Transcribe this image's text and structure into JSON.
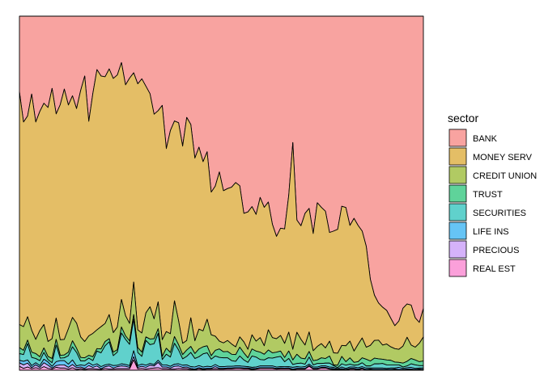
{
  "chart_data": {
    "type": "area",
    "stacked": "fill",
    "x_axis": "hidden",
    "y_axis": "hidden",
    "ylim": [
      0,
      1
    ],
    "grid": false,
    "legend": {
      "title": "sector",
      "placement": "right"
    },
    "stack_order_top_to_bottom": [
      "BANK",
      "MONEY SERV",
      "CREDIT UNION",
      "TRUST",
      "SECURITIES",
      "LIFE INS",
      "PRECIOUS",
      "REAL EST"
    ],
    "x": [
      1,
      2,
      3,
      4,
      5,
      6,
      7,
      8,
      9,
      10,
      11,
      12,
      13,
      14,
      15,
      16,
      17,
      18,
      19,
      20,
      21,
      22,
      23,
      24,
      25,
      26,
      27,
      28,
      29,
      30,
      31,
      32,
      33,
      34,
      35,
      36,
      37,
      38,
      39,
      40,
      41,
      42,
      43,
      44,
      45,
      46,
      47,
      48,
      49,
      50,
      51,
      52,
      53,
      54,
      55,
      56,
      57,
      58,
      59,
      60,
      61,
      62,
      63,
      64,
      65,
      66,
      67,
      68,
      69,
      70,
      71,
      72,
      73,
      74,
      75,
      76,
      77,
      78,
      79,
      80,
      81,
      82,
      83,
      84,
      85,
      86,
      87,
      88,
      89,
      90,
      91,
      92,
      93,
      94,
      95,
      96,
      97,
      98,
      99,
      100
    ],
    "series": [
      {
        "name": "BANK",
        "color": "#F8A3A0",
        "values": [
          0.214,
          0.299,
          0.282,
          0.22,
          0.299,
          0.269,
          0.246,
          0.258,
          0.204,
          0.276,
          0.25,
          0.206,
          0.251,
          0.225,
          0.261,
          0.21,
          0.169,
          0.297,
          0.218,
          0.151,
          0.169,
          0.171,
          0.149,
          0.176,
          0.166,
          0.131,
          0.194,
          0.175,
          0.16,
          0.191,
          0.177,
          0.198,
          0.219,
          0.277,
          0.267,
          0.252,
          0.374,
          0.323,
          0.296,
          0.301,
          0.367,
          0.286,
          0.306,
          0.401,
          0.37,
          0.411,
          0.383,
          0.497,
          0.48,
          0.44,
          0.493,
          0.487,
          0.483,
          0.47,
          0.479,
          0.557,
          0.553,
          0.538,
          0.56,
          0.512,
          0.54,
          0.525,
          0.588,
          0.622,
          0.599,
          0.604,
          0.504,
          0.357,
          0.576,
          0.592,
          0.557,
          0.543,
          0.614,
          0.527,
          0.54,
          0.551,
          0.611,
          0.607,
          0.602,
          0.537,
          0.541,
          0.591,
          0.571,
          0.591,
          0.607,
          0.65,
          0.743,
          0.788,
          0.81,
          0.822,
          0.831,
          0.853,
          0.876,
          0.861,
          0.825,
          0.813,
          0.816,
          0.852,
          0.865,
          0.826
        ]
      },
      {
        "name": "MONEY SERV",
        "color": "#E4BE66",
        "values": [
          0.657,
          0.578,
          0.567,
          0.667,
          0.614,
          0.619,
          0.625,
          0.661,
          0.707,
          0.577,
          0.664,
          0.707,
          0.632,
          0.626,
          0.606,
          0.696,
          0.75,
          0.606,
          0.678,
          0.735,
          0.708,
          0.697,
          0.694,
          0.718,
          0.712,
          0.669,
          0.652,
          0.693,
          0.591,
          0.695,
          0.718,
          0.64,
          0.602,
          0.578,
          0.54,
          0.662,
          0.517,
          0.574,
          0.508,
          0.559,
          0.557,
          0.63,
          0.546,
          0.516,
          0.514,
          0.478,
          0.473,
          0.403,
          0.424,
          0.478,
          0.43,
          0.429,
          0.443,
          0.464,
          0.427,
          0.363,
          0.388,
          0.362,
          0.358,
          0.396,
          0.391,
          0.361,
          0.32,
          0.289,
          0.303,
          0.325,
          0.384,
          0.584,
          0.317,
          0.321,
          0.372,
          0.349,
          0.331,
          0.406,
          0.385,
          0.386,
          0.307,
          0.344,
          0.35,
          0.393,
          0.391,
          0.327,
          0.375,
          0.336,
          0.302,
          0.285,
          0.187,
          0.128,
          0.105,
          0.107,
          0.095,
          0.081,
          0.065,
          0.08,
          0.107,
          0.094,
          0.113,
          0.083,
          0.059,
          0.08
        ]
      },
      {
        "name": "CREDIT UNION",
        "color": "#B1CA63",
        "values": [
          0.065,
          0.067,
          0.066,
          0.062,
          0.04,
          0.074,
          0.066,
          0.042,
          0.056,
          0.06,
          0.044,
          0.044,
          0.066,
          0.066,
          0.071,
          0.058,
          0.046,
          0.055,
          0.066,
          0.053,
          0.063,
          0.051,
          0.068,
          0.055,
          0.064,
          0.078,
          0.057,
          0.049,
          0.092,
          0.05,
          0.054,
          0.068,
          0.091,
          0.056,
          0.076,
          0.047,
          0.047,
          0.053,
          0.101,
          0.068,
          0.032,
          0.027,
          0.081,
          0.036,
          0.056,
          0.045,
          0.075,
          0.059,
          0.04,
          0.022,
          0.025,
          0.031,
          0.029,
          0.022,
          0.029,
          0.031,
          0.024,
          0.04,
          0.028,
          0.041,
          0.024,
          0.057,
          0.043,
          0.038,
          0.044,
          0.04,
          0.053,
          0.03,
          0.062,
          0.053,
          0.039,
          0.055,
          0.028,
          0.038,
          0.04,
          0.03,
          0.042,
          0.034,
          0.034,
          0.031,
          0.045,
          0.047,
          0.032,
          0.049,
          0.056,
          0.034,
          0.044,
          0.05,
          0.053,
          0.04,
          0.045,
          0.038,
          0.038,
          0.037,
          0.048,
          0.068,
          0.038,
          0.036,
          0.052,
          0.068
        ]
      },
      {
        "name": "TRUST",
        "color": "#5FD39A",
        "values": [
          0.017,
          0.012,
          0.01,
          0.015,
          0.014,
          0.011,
          0.013,
          0.009,
          0.012,
          0.016,
          0.008,
          0.008,
          0.01,
          0.017,
          0.012,
          0.01,
          0.009,
          0.008,
          0.011,
          0.007,
          0.011,
          0.012,
          0.009,
          0.01,
          0.007,
          0.017,
          0.01,
          0.01,
          0.013,
          0.014,
          0.012,
          0.01,
          0.016,
          0.014,
          0.013,
          0.009,
          0.017,
          0.013,
          0.019,
          0.015,
          0.012,
          0.018,
          0.017,
          0.014,
          0.022,
          0.02,
          0.02,
          0.01,
          0.016,
          0.024,
          0.017,
          0.018,
          0.018,
          0.019,
          0.025,
          0.02,
          0.013,
          0.02,
          0.017,
          0.021,
          0.016,
          0.022,
          0.015,
          0.014,
          0.015,
          0.012,
          0.021,
          0.013,
          0.026,
          0.014,
          0.015,
          0.016,
          0.012,
          0.01,
          0.016,
          0.013,
          0.02,
          0.002,
          0.007,
          0.021,
          0.01,
          0.018,
          0.008,
          0.009,
          0.014,
          0.019,
          0.014,
          0.016,
          0.014,
          0.012,
          0.014,
          0.013,
          0.008,
          0.007,
          0.011,
          0.013,
          0.015,
          0.014,
          0.011,
          0.013
        ]
      },
      {
        "name": "SECURITIES",
        "color": "#60D1CC",
        "values": [
          0.019,
          0.019,
          0.046,
          0.023,
          0.012,
          0.014,
          0.019,
          0.007,
          0.01,
          0.047,
          0.007,
          0.008,
          0.024,
          0.037,
          0.038,
          0.011,
          0.013,
          0.013,
          0.013,
          0.036,
          0.039,
          0.054,
          0.063,
          0.028,
          0.037,
          0.087,
          0.071,
          0.06,
          0.089,
          0.037,
          0.022,
          0.07,
          0.053,
          0.059,
          0.076,
          0.015,
          0.03,
          0.026,
          0.059,
          0.039,
          0.018,
          0.024,
          0.04,
          0.024,
          0.025,
          0.037,
          0.038,
          0.021,
          0.024,
          0.026,
          0.025,
          0.024,
          0.016,
          0.013,
          0.028,
          0.018,
          0.012,
          0.032,
          0.028,
          0.018,
          0.017,
          0.023,
          0.022,
          0.028,
          0.029,
          0.014,
          0.023,
          0.008,
          0.009,
          0.011,
          0.007,
          0.02,
          0.006,
          0.01,
          0.007,
          0.008,
          0.011,
          0.005,
          0.003,
          0.009,
          0.009,
          0.008,
          0.005,
          0.008,
          0.011,
          0.006,
          0.006,
          0.012,
          0.012,
          0.013,
          0.01,
          0.009,
          0.009,
          0.007,
          0.004,
          0.005,
          0.01,
          0.01,
          0.007,
          0.007
        ]
      },
      {
        "name": "LIFE INS",
        "color": "#66C4F5",
        "values": [
          0.007,
          0.01,
          0.009,
          0.006,
          0.006,
          0.005,
          0.01,
          0.009,
          0.005,
          0.011,
          0.012,
          0.012,
          0.009,
          0.013,
          0.005,
          0.006,
          0.008,
          0.008,
          0.006,
          0.006,
          0.006,
          0.005,
          0.005,
          0.007,
          0.004,
          0.006,
          0.005,
          0.005,
          0.017,
          0.005,
          0.006,
          0.006,
          0.005,
          0.004,
          0.006,
          0.006,
          0.006,
          0.005,
          0.006,
          0.006,
          0.006,
          0.006,
          0.005,
          0.006,
          0.006,
          0.005,
          0.006,
          0.005,
          0.006,
          0.005,
          0.005,
          0.005,
          0.005,
          0.005,
          0.005,
          0.005,
          0.004,
          0.004,
          0.004,
          0.005,
          0.005,
          0.005,
          0.005,
          0.004,
          0.004,
          0.004,
          0.004,
          0.005,
          0.005,
          0.004,
          0.005,
          0.004,
          0.004,
          0.004,
          0.004,
          0.004,
          0.004,
          0.004,
          0.002,
          0.005,
          0.003,
          0.004,
          0.004,
          0.004,
          0.004,
          0.004,
          0.003,
          0.004,
          0.004,
          0.004,
          0.003,
          0.004,
          0.003,
          0.006,
          0.003,
          0.004,
          0.005,
          0.003,
          0.003,
          0.004
        ]
      },
      {
        "name": "PRECIOUS",
        "color": "#D5B2FA",
        "values": [
          0.01,
          0.01,
          0.011,
          0.003,
          0.008,
          0.004,
          0.011,
          0.009,
          0.003,
          0.005,
          0.009,
          0.009,
          0.005,
          0.009,
          0.005,
          0.005,
          0.003,
          0.009,
          0.004,
          0.009,
          0.002,
          0.005,
          0.009,
          0.003,
          0.006,
          0.008,
          0.007,
          0.004,
          0.009,
          0.004,
          0.006,
          0.005,
          0.009,
          0.006,
          0.015,
          0.005,
          0.005,
          0.003,
          0.008,
          0.007,
          0.004,
          0.005,
          0.003,
          0.002,
          0.003,
          0.002,
          0.002,
          0.002,
          0.006,
          0.002,
          0.002,
          0.002,
          0.002,
          0.002,
          0.002,
          0.002,
          0.002,
          0.002,
          0.002,
          0.002,
          0.002,
          0.002,
          0.002,
          0.002,
          0.002,
          0.002,
          0.002,
          0.002,
          0.002,
          0.002,
          0.002,
          0.002,
          0.002,
          0.002,
          0.002,
          0.002,
          0.002,
          0.002,
          0.002,
          0.002,
          0.002,
          0.002,
          0.002,
          0.002,
          0.002,
          0.002,
          0.002,
          0.002,
          0.002,
          0.002,
          0.002,
          0.002,
          0.002,
          0.002,
          0.002,
          0.002,
          0.002,
          0.002,
          0.002,
          0.002
        ]
      },
      {
        "name": "REAL EST",
        "color": "#FBA0DA",
        "values": [
          0.011,
          0.005,
          0.009,
          0.004,
          0.007,
          0.004,
          0.01,
          0.005,
          0.003,
          0.008,
          0.006,
          0.006,
          0.003,
          0.007,
          0.002,
          0.004,
          0.002,
          0.004,
          0.004,
          0.003,
          0.002,
          0.005,
          0.003,
          0.003,
          0.004,
          0.004,
          0.004,
          0.004,
          0.029,
          0.004,
          0.005,
          0.003,
          0.005,
          0.006,
          0.007,
          0.004,
          0.004,
          0.003,
          0.003,
          0.005,
          0.004,
          0.004,
          0.002,
          0.001,
          0.004,
          0.002,
          0.003,
          0.003,
          0.004,
          0.003,
          0.003,
          0.004,
          0.004,
          0.005,
          0.005,
          0.004,
          0.004,
          0.002,
          0.003,
          0.005,
          0.005,
          0.005,
          0.005,
          0.003,
          0.004,
          0.004,
          0.004,
          0.001,
          0.003,
          0.003,
          0.003,
          0.011,
          0.003,
          0.003,
          0.006,
          0.006,
          0.003,
          0.002,
          0.0,
          0.002,
          0.0,
          0.003,
          0.003,
          0.001,
          0.004,
          0.0,
          0.001,
          0.0,
          0.0,
          0.0,
          0.0,
          0.0,
          0.001,
          0.0,
          0.0,
          0.001,
          0.001,
          0.0,
          0.001,
          0.0
        ]
      }
    ]
  }
}
